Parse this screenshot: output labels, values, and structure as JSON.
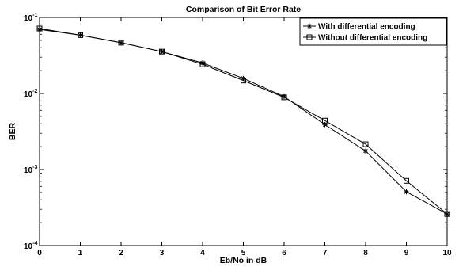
{
  "chart_data": {
    "type": "line",
    "title": "Comparison of Bit Error Rate",
    "xlabel": "Eb/No in dB",
    "ylabel": "BER",
    "x": [
      0,
      1,
      2,
      3,
      4,
      5,
      6,
      7,
      8,
      9,
      10
    ],
    "xlim": [
      0,
      10
    ],
    "ylim": [
      0.0001,
      0.1
    ],
    "yscale": "log",
    "x_ticks": [
      "0",
      "1",
      "2",
      "3",
      "4",
      "5",
      "6",
      "7",
      "8",
      "9",
      "10"
    ],
    "y_ticks": [
      {
        "base": "10",
        "exp": "-4",
        "value": 0.0001
      },
      {
        "base": "10",
        "exp": "-3",
        "value": 0.001
      },
      {
        "base": "10",
        "exp": "-2",
        "value": 0.01
      },
      {
        "base": "10",
        "exp": "-1",
        "value": 0.1
      }
    ],
    "grid": false,
    "legend_position": "top-right",
    "series": [
      {
        "name": "With differential encoding",
        "marker": "asterisk",
        "color": "#000000",
        "values": [
          0.0695,
          0.0585,
          0.0465,
          0.0355,
          0.0252,
          0.0158,
          0.0091,
          0.0039,
          0.00175,
          0.00051,
          0.00026
        ]
      },
      {
        "name": "Without differential encoding",
        "marker": "square",
        "color": "#000000",
        "values": [
          0.0715,
          0.0585,
          0.0465,
          0.0355,
          0.0242,
          0.0148,
          0.0089,
          0.0044,
          0.00215,
          0.00071,
          0.00026
        ]
      }
    ]
  }
}
